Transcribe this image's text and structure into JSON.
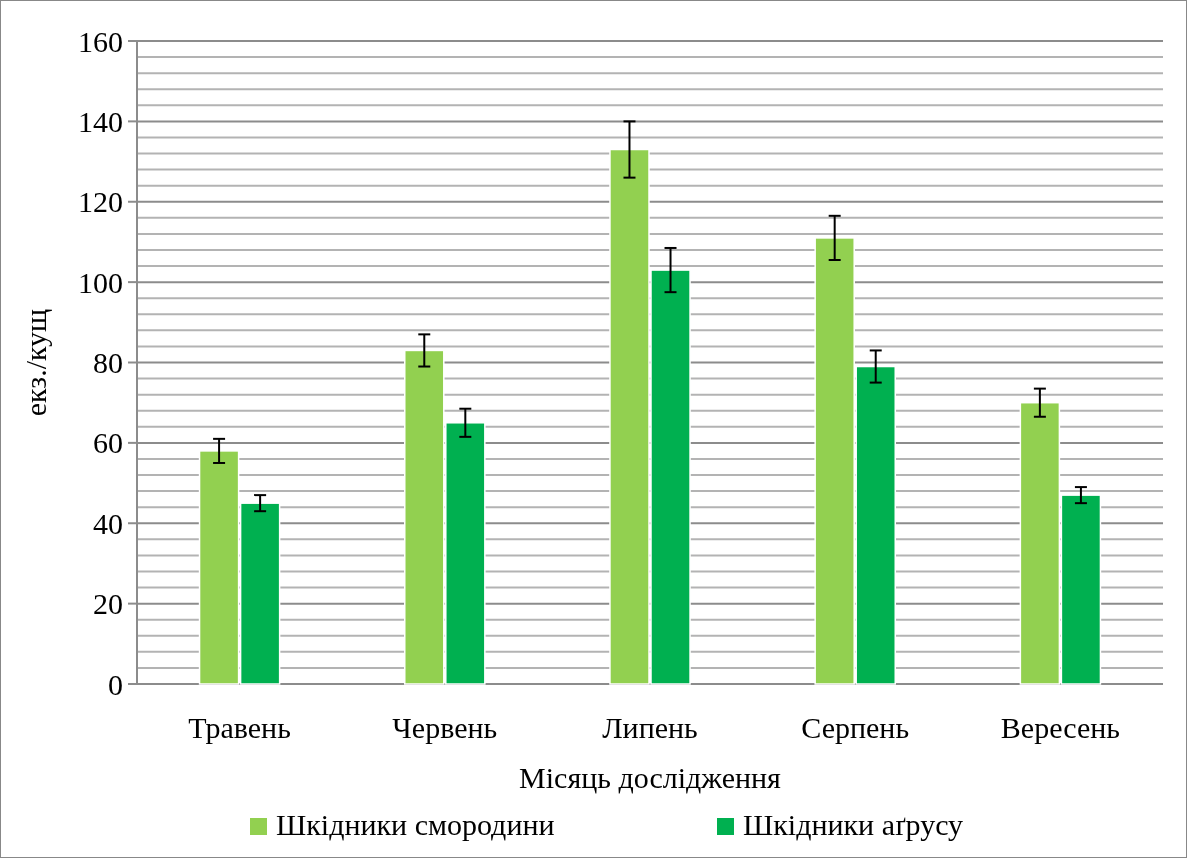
{
  "chart_data": {
    "type": "bar",
    "xlabel": "Місяць дослідження",
    "ylabel": "екз./кущ",
    "categories": [
      "Травень",
      "Червень",
      "Липень",
      "Серпень",
      "Вересень"
    ],
    "series": [
      {
        "name": "Шкідники смородини",
        "color": "#92d050",
        "values": [
          58,
          83,
          133,
          111,
          70
        ],
        "errors": [
          3,
          4,
          7,
          5.5,
          3.5
        ]
      },
      {
        "name": "Шкідники аґрусу",
        "color": "#00b050",
        "values": [
          45,
          65,
          103,
          79,
          47
        ],
        "errors": [
          2,
          3.5,
          5.5,
          4,
          2
        ]
      }
    ],
    "ylim": [
      0,
      160
    ],
    "yticks": [
      0,
      {
        "value": 4,
        "label": null
      },
      {
        "value": 8,
        "label": null
      },
      {
        "value": 12,
        "label": null
      },
      {
        "value": 16,
        "label": null
      },
      20,
      {
        "value": 24,
        "label": null
      },
      {
        "value": 28,
        "label": null
      },
      {
        "value": 32,
        "label": null
      },
      {
        "value": 36,
        "label": null
      },
      40,
      {
        "value": 44,
        "label": null
      },
      {
        "value": 48,
        "label": null
      },
      {
        "value": 52,
        "label": null
      },
      {
        "value": 56,
        "label": null
      },
      60,
      {
        "value": 64,
        "label": null
      },
      {
        "value": 68,
        "label": null
      },
      {
        "value": 72,
        "label": null
      },
      {
        "value": 76,
        "label": null
      },
      80,
      {
        "value": 84,
        "label": null
      },
      {
        "value": 88,
        "label": null
      },
      {
        "value": 92,
        "label": null
      },
      {
        "value": 96,
        "label": null
      },
      100,
      {
        "value": 104,
        "label": null
      },
      {
        "value": 108,
        "label": null
      },
      {
        "value": 112,
        "label": null
      },
      {
        "value": 116,
        "label": null
      },
      120,
      {
        "value": 124,
        "label": null
      },
      {
        "value": 128,
        "label": null
      },
      {
        "value": 132,
        "label": null
      },
      {
        "value": 136,
        "label": null
      },
      140,
      {
        "value": 144,
        "label": null
      },
      {
        "value": 148,
        "label": null
      },
      {
        "value": 152,
        "label": null
      },
      {
        "value": 156,
        "label": null
      },
      160
    ],
    "grid": true,
    "legend": "bottom"
  }
}
